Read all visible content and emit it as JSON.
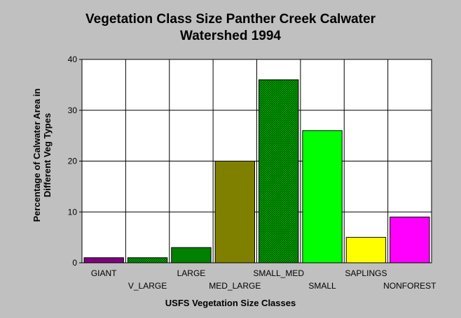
{
  "chart_data": {
    "type": "bar",
    "title_line1": "Vegetation Class Size Panther Creek Calwater",
    "title_line2": "Watershed 1994",
    "xlabel": "USFS Vegetation Size Classes",
    "ylabel": "Percentage of Calwater Area in Different Veg Types",
    "categories": [
      "GIANT",
      "V_LARGE",
      "LARGE",
      "MED_LARGE",
      "SMALL_MED",
      "SMALL",
      "SAPLINGS",
      "NONFOREST"
    ],
    "values": [
      1,
      1,
      3,
      20,
      36,
      26,
      5,
      9
    ],
    "colors": [
      "#800080",
      "#006400",
      "#008000",
      "#808000",
      "#008000",
      "#00ff00",
      "#ffff00",
      "#ff00ff"
    ],
    "hatched": [
      false,
      true,
      false,
      false,
      true,
      false,
      false,
      false
    ],
    "ylim": [
      0,
      40
    ],
    "yticks": [
      0,
      10,
      20,
      30,
      40
    ],
    "grid": true
  }
}
